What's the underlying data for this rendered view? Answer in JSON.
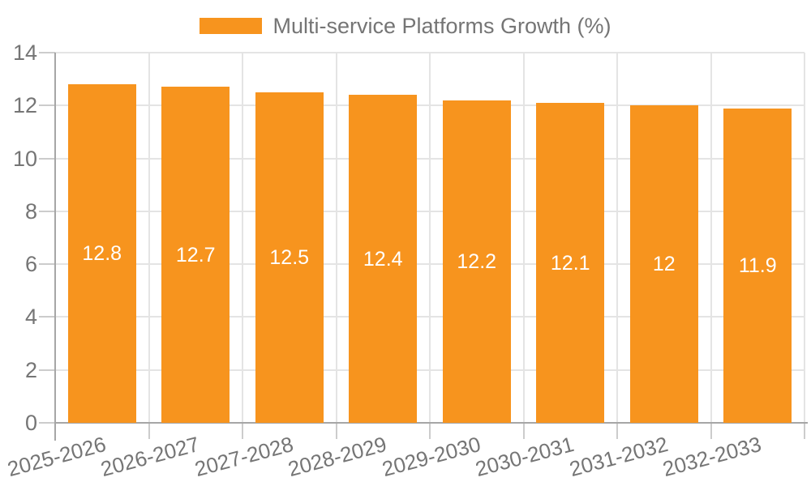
{
  "legend": {
    "label": "Multi-service Platforms Growth (%)"
  },
  "chart_data": {
    "type": "bar",
    "title": "",
    "series_name": "Multi-service Platforms Growth (%)",
    "categories": [
      "2025-2026",
      "2026-2027",
      "2027-2028",
      "2028-2029",
      "2029-2030",
      "2030-2031",
      "2031-2032",
      "2032-2033"
    ],
    "values": [
      12.8,
      12.7,
      12.5,
      12.4,
      12.2,
      12.1,
      12,
      11.9
    ],
    "bar_labels": [
      "12.8",
      "12.7",
      "12.5",
      "12.4",
      "12.2",
      "12.1",
      "12",
      "11.9"
    ],
    "xlabel": "",
    "ylabel": "",
    "ylim": [
      0,
      14
    ],
    "yticks": [
      0,
      2,
      4,
      6,
      8,
      10,
      12,
      14
    ],
    "grid": true,
    "legend_position": "top-center",
    "bar_color": "#f7941e",
    "bar_label_color": "#ffffff",
    "axis_line_color": "#a6a6a6",
    "grid_line_color": "#e4e4e4",
    "tick_color": "#cccccc",
    "text_color": "#757575",
    "background_color": "#ffffff"
  }
}
